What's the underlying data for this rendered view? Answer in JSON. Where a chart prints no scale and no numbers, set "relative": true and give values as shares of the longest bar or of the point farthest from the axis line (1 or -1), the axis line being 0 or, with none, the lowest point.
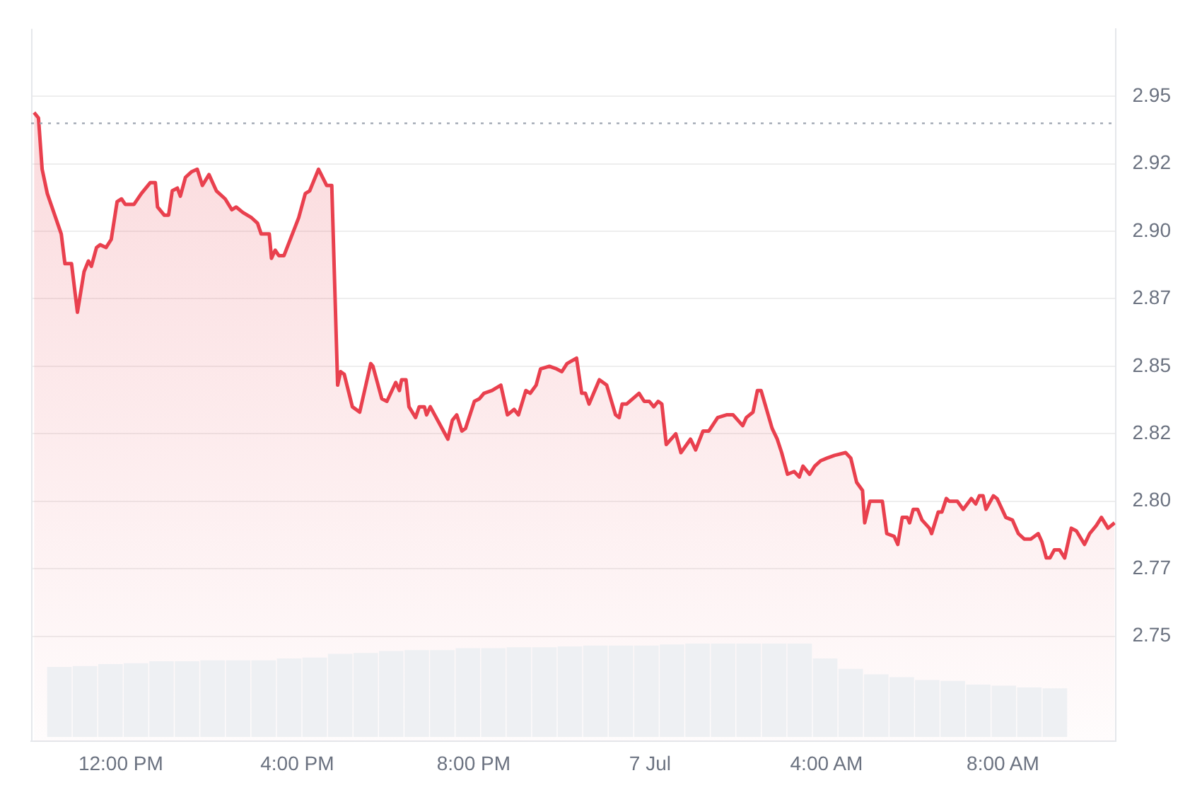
{
  "chart_data": [
    {
      "type": "area",
      "xlim": [
        "--07-06T09:58",
        "--07-07T10:33"
      ],
      "ylim": [
        2.706,
        2.97
      ],
      "xticks": [
        {
          "value": "--07-06T12:00",
          "label": "12:00 PM"
        },
        {
          "value": "--07-06T16:00",
          "label": "4:00 PM"
        },
        {
          "value": "--07-06T20:00",
          "label": "8:00 PM"
        },
        {
          "value": "--07-07T00:00",
          "label": "7 Jul"
        },
        {
          "value": "--07-07T04:00",
          "label": "4:00 AM"
        },
        {
          "value": "--07-07T08:00",
          "label": "8:00 AM"
        }
      ],
      "yticks": [
        {
          "value": 2.745,
          "label": "2.75"
        },
        {
          "value": 2.77,
          "label": "2.77"
        },
        {
          "value": 2.795,
          "label": "2.80"
        },
        {
          "value": 2.82,
          "label": "2.82"
        },
        {
          "value": 2.845,
          "label": "2.85"
        },
        {
          "value": 2.87,
          "label": "2.87"
        },
        {
          "value": 2.895,
          "label": "2.90"
        },
        {
          "value": 2.92,
          "label": "2.92"
        },
        {
          "value": 2.945,
          "label": "2.95"
        }
      ],
      "grid": "y",
      "legend": false,
      "marker": "none",
      "line_style": "solid",
      "ref_lines": [
        {
          "axis": "y",
          "value": 2.935,
          "color": "#9ca3af",
          "line_style": "dotted"
        }
      ],
      "series": [
        {
          "color": "#e9404e",
          "x": [
            "--07-06T10:02",
            "--07-06T10:08",
            "--07-06T10:13",
            "--07-06T10:20",
            "--07-06T10:39",
            "--07-06T10:44",
            "--07-06T10:53",
            "--07-06T11:01",
            "--07-06T11:10",
            "--07-06T11:16",
            "--07-06T11:20",
            "--07-06T11:27",
            "--07-06T11:32",
            "--07-06T11:40",
            "--07-06T11:47",
            "--07-06T11:55",
            "--07-06T12:01",
            "--07-06T12:06",
            "--07-06T12:18",
            "--07-06T12:28",
            "--07-06T12:40",
            "--07-06T12:47",
            "--07-06T12:50",
            "--07-06T12:59",
            "--07-06T13:05",
            "--07-06T13:10",
            "--07-06T13:17",
            "--07-06T13:21",
            "--07-06T13:28",
            "--07-06T13:36",
            "--07-06T13:44",
            "--07-06T13:51",
            "--07-06T14:00",
            "--07-06T14:10",
            "--07-06T14:22",
            "--07-06T14:31",
            "--07-06T14:37",
            "--07-06T14:46",
            "--07-06T14:58",
            "--07-06T15:06",
            "--07-06T15:11",
            "--07-06T15:22",
            "--07-06T15:25",
            "--07-06T15:30",
            "--07-06T15:35",
            "--07-06T15:42",
            "--07-06T15:52",
            "--07-06T16:02",
            "--07-06T16:11",
            "--07-06T16:17",
            "--07-06T16:29",
            "--07-06T16:40",
            "--07-06T16:47",
            "--07-06T16:55",
            "--07-06T16:59",
            "--07-06T17:04",
            "--07-06T17:15",
            "--07-06T17:25",
            "--07-06T17:40",
            "--07-06T17:43",
            "--07-06T17:55",
            "--07-06T18:02",
            "--07-06T18:14",
            "--07-06T18:19",
            "--07-06T18:22",
            "--07-06T18:28",
            "--07-06T18:32",
            "--07-06T18:41",
            "--07-06T18:46",
            "--07-06T18:53",
            "--07-06T18:56",
            "--07-06T19:01",
            "--07-06T19:13",
            "--07-06T19:25",
            "--07-06T19:31",
            "--07-06T19:37",
            "--07-06T19:44",
            "--07-06T19:49",
            "--07-06T20:01",
            "--07-06T20:08",
            "--07-06T20:14",
            "--07-06T20:25",
            "--07-06T20:37",
            "--07-06T20:46",
            "--07-06T20:55",
            "--07-06T21:01",
            "--07-06T21:11",
            "--07-06T21:17",
            "--07-06T21:25",
            "--07-06T21:31",
            "--07-06T21:43",
            "--07-06T21:53",
            "--07-06T22:00",
            "--07-06T22:07",
            "--07-06T22:20",
            "--07-06T22:27",
            "--07-06T22:32",
            "--07-06T22:37",
            "--07-06T22:51",
            "--07-06T23:01",
            "--07-06T23:13",
            "--07-06T23:18",
            "--07-06T23:22",
            "--07-06T23:28",
            "--07-06T23:45",
            "--07-06T23:52",
            "--07-06T23:59",
            "--07-07T00:05",
            "--07-07T00:11",
            "--07-07T00:16",
            "--07-07T00:22",
            "--07-07T00:35",
            "--07-07T00:42",
            "--07-07T00:55",
            "--07-07T01:02",
            "--07-07T01:12",
            "--07-07T01:20",
            "--07-07T01:32",
            "--07-07T01:44",
            "--07-07T01:53",
            "--07-07T02:06",
            "--07-07T02:11",
            "--07-07T02:20",
            "--07-07T02:26",
            "--07-07T02:31",
            "--07-07T02:46",
            "--07-07T02:53",
            "--07-07T02:59",
            "--07-07T03:07",
            "--07-07T03:16",
            "--07-07T03:23",
            "--07-07T03:28",
            "--07-07T03:37",
            "--07-07T03:44",
            "--07-07T03:52",
            "--07-07T04:01",
            "--07-07T04:11",
            "--07-07T04:26",
            "--07-07T04:33",
            "--07-07T04:41",
            "--07-07T04:49",
            "--07-07T04:52",
            "--07-07T04:59",
            "--07-07T05:16",
            "--07-07T05:22",
            "--07-07T05:32",
            "--07-07T05:37",
            "--07-07T05:43",
            "--07-07T05:50",
            "--07-07T05:53",
            "--07-07T05:58",
            "--07-07T06:04",
            "--07-07T06:10",
            "--07-07T06:20",
            "--07-07T06:23",
            "--07-07T06:32",
            "--07-07T06:37",
            "--07-07T06:43",
            "--07-07T06:47",
            "--07-07T06:58",
            "--07-07T07:06",
            "--07-07T07:17",
            "--07-07T07:23",
            "--07-07T07:28",
            "--07-07T07:33",
            "--07-07T07:37",
            "--07-07T07:47",
            "--07-07T07:52",
            "--07-07T08:04",
            "--07-07T08:13",
            "--07-07T08:21",
            "--07-07T08:29",
            "--07-07T08:38",
            "--07-07T08:48",
            "--07-07T08:53",
            "--07-07T08:59",
            "--07-07T09:04",
            "--07-07T09:10",
            "--07-07T09:17",
            "--07-07T09:24",
            "--07-07T09:33",
            "--07-07T09:40",
            "--07-07T09:51",
            "--07-07T09:58",
            "--07-07T10:07",
            "--07-07T10:14",
            "--07-07T10:23",
            "--07-07T10:32"
          ],
          "values": [
            2.939,
            2.937,
            2.918,
            2.909,
            2.894,
            2.883,
            2.883,
            2.865,
            2.88,
            2.884,
            2.882,
            2.889,
            2.89,
            2.889,
            2.892,
            2.906,
            2.907,
            2.905,
            2.905,
            2.909,
            2.913,
            2.913,
            2.904,
            2.901,
            2.901,
            2.91,
            2.911,
            2.908,
            2.915,
            2.917,
            2.918,
            2.912,
            2.916,
            2.91,
            2.907,
            2.903,
            2.904,
            2.902,
            2.9,
            2.898,
            2.894,
            2.894,
            2.885,
            2.888,
            2.886,
            2.886,
            2.893,
            2.9,
            2.909,
            2.91,
            2.918,
            2.912,
            2.912,
            2.838,
            2.843,
            2.842,
            2.83,
            2.828,
            2.846,
            2.845,
            2.833,
            2.832,
            2.839,
            2.836,
            2.84,
            2.84,
            2.83,
            2.826,
            2.83,
            2.83,
            2.827,
            2.83,
            2.824,
            2.818,
            2.825,
            2.827,
            2.821,
            2.822,
            2.832,
            2.833,
            2.835,
            2.836,
            2.838,
            2.827,
            2.829,
            2.827,
            2.836,
            2.835,
            2.838,
            2.844,
            2.845,
            2.844,
            2.843,
            2.846,
            2.848,
            2.835,
            2.835,
            2.831,
            2.84,
            2.838,
            2.827,
            2.826,
            2.831,
            2.831,
            2.835,
            2.832,
            2.832,
            2.83,
            2.832,
            2.831,
            2.816,
            2.82,
            2.813,
            2.818,
            2.814,
            2.821,
            2.821,
            2.826,
            2.827,
            2.827,
            2.823,
            2.826,
            2.828,
            2.836,
            2.836,
            2.822,
            2.818,
            2.813,
            2.805,
            2.806,
            2.804,
            2.808,
            2.805,
            2.808,
            2.81,
            2.811,
            2.812,
            2.813,
            2.811,
            2.802,
            2.799,
            2.787,
            2.795,
            2.795,
            2.783,
            2.782,
            2.779,
            2.789,
            2.789,
            2.787,
            2.792,
            2.792,
            2.788,
            2.785,
            2.783,
            2.791,
            2.791,
            2.796,
            2.795,
            2.795,
            2.792,
            2.796,
            2.794,
            2.797,
            2.797,
            2.792,
            2.797,
            2.796,
            2.789,
            2.788,
            2.783,
            2.781,
            2.781,
            2.783,
            2.78,
            2.774,
            2.774,
            2.777,
            2.777,
            2.774,
            2.785,
            2.784,
            2.779,
            2.783,
            2.786,
            2.789,
            2.785,
            2.787
          ]
        }
      ]
    },
    {
      "type": "bar",
      "relative": true,
      "legend": false,
      "categories": [
        null,
        null,
        null,
        null,
        null,
        null,
        null,
        null,
        null,
        null,
        null,
        null,
        null,
        null,
        null,
        null,
        null,
        null,
        null,
        null,
        null,
        null,
        null,
        null,
        null,
        null,
        null,
        null,
        null,
        null,
        null,
        null,
        null,
        null,
        null,
        null,
        null,
        null,
        null,
        null
      ],
      "values": [
        0.75,
        0.76,
        0.78,
        0.79,
        0.81,
        0.81,
        0.82,
        0.82,
        0.82,
        0.84,
        0.85,
        0.89,
        0.9,
        0.92,
        0.93,
        0.93,
        0.95,
        0.95,
        0.96,
        0.96,
        0.97,
        0.98,
        0.98,
        0.98,
        0.99,
        1,
        1,
        1,
        1,
        1,
        0.84,
        0.73,
        0.67,
        0.64,
        0.61,
        0.6,
        0.56,
        0.55,
        0.53,
        0.52
      ],
      "color": "#eef0f3"
    }
  ]
}
